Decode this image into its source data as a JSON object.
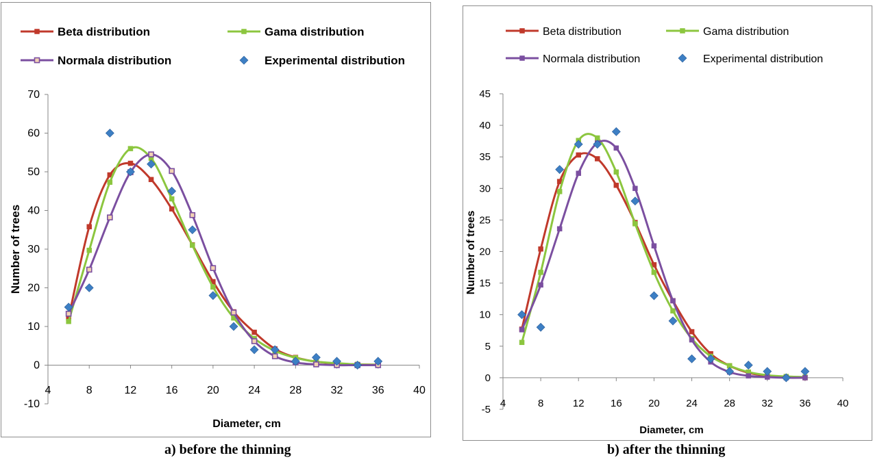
{
  "captions": {
    "a": "a) before the thinning",
    "b": "b) after the thinning"
  },
  "colors": {
    "beta": "#c0392b",
    "gama": "#8cc63f",
    "normala": "#7b4fa0",
    "experimental": "#3d7fc4"
  },
  "chart_data": [
    {
      "type": "line",
      "id": "a",
      "xlabel": "Diameter, cm",
      "ylabel": "Number of trees",
      "xlim": [
        4,
        40
      ],
      "ylim": [
        -10,
        70
      ],
      "xticks": [
        4,
        8,
        12,
        16,
        20,
        24,
        28,
        32,
        36,
        40
      ],
      "yticks": [
        -10,
        0,
        10,
        20,
        30,
        40,
        50,
        60,
        70
      ],
      "legend_layout": "top, two columns",
      "series": [
        {
          "name": "Beta distribution",
          "key": "beta",
          "style": "line-square",
          "x": [
            6,
            8,
            10,
            12,
            14,
            16,
            18,
            20,
            22,
            24,
            26,
            28,
            30,
            32,
            34,
            36
          ],
          "y": [
            12.2,
            35.8,
            49.2,
            52.2,
            48.0,
            40.4,
            31.1,
            21.6,
            13.8,
            8.5,
            4.2,
            2.0,
            0.9,
            0.4,
            0.2,
            0.1
          ]
        },
        {
          "name": "Gama distribution",
          "key": "gama",
          "style": "line-square",
          "x": [
            6,
            8,
            10,
            12,
            14,
            16,
            18,
            20,
            22,
            24,
            26,
            28,
            30,
            32,
            34,
            36
          ],
          "y": [
            11.3,
            29.7,
            47.3,
            56.0,
            53.5,
            43.0,
            31.0,
            20.2,
            12.2,
            6.9,
            3.7,
            1.9,
            0.9,
            0.5,
            0.2,
            0.1
          ]
        },
        {
          "name": "Normala distribution",
          "key": "normala",
          "style": "line-hollow-square",
          "x": [
            6,
            8,
            10,
            12,
            14,
            16,
            18,
            20,
            22,
            24,
            26,
            28,
            30,
            32,
            34,
            36
          ],
          "y": [
            13.3,
            24.7,
            38.2,
            49.9,
            54.5,
            50.2,
            38.8,
            25.1,
            13.6,
            6.2,
            2.3,
            0.7,
            0.2,
            0.0,
            0.0,
            0.0
          ]
        },
        {
          "name": "Experimental distribution",
          "key": "experimental",
          "style": "diamond",
          "x": [
            6,
            8,
            10,
            12,
            14,
            16,
            18,
            20,
            22,
            24,
            26,
            28,
            30,
            32,
            34,
            36
          ],
          "y": [
            15,
            20,
            60,
            50,
            52,
            45,
            35,
            18,
            10,
            4,
            4,
            1,
            2,
            1,
            0,
            1
          ]
        }
      ]
    },
    {
      "type": "line",
      "id": "b",
      "xlabel": "Diameter, cm",
      "ylabel": "Number of trees",
      "xlim": [
        4,
        40
      ],
      "ylim": [
        -5,
        45
      ],
      "xticks": [
        4,
        8,
        12,
        16,
        20,
        24,
        28,
        32,
        36,
        40
      ],
      "yticks": [
        -5,
        0,
        5,
        10,
        15,
        20,
        25,
        30,
        35,
        40,
        45
      ],
      "legend_layout": "top, two columns",
      "series": [
        {
          "name": "Beta distribution",
          "key": "beta",
          "style": "line-square",
          "x": [
            6,
            8,
            10,
            12,
            14,
            16,
            18,
            20,
            22,
            24,
            26,
            28,
            30,
            32,
            34,
            36
          ],
          "y": [
            7.7,
            20.4,
            31.1,
            35.3,
            34.7,
            30.5,
            24.6,
            17.9,
            12.2,
            7.3,
            3.8,
            1.9,
            0.8,
            0.3,
            0.1,
            0.0
          ]
        },
        {
          "name": "Gama distribution",
          "key": "gama",
          "style": "line-square",
          "x": [
            6,
            8,
            10,
            12,
            14,
            16,
            18,
            20,
            22,
            24,
            26,
            28,
            30,
            32,
            34,
            36
          ],
          "y": [
            5.6,
            16.7,
            29.5,
            37.6,
            38.0,
            32.6,
            24.4,
            16.7,
            10.6,
            6.2,
            3.4,
            1.9,
            0.9,
            0.4,
            0.2,
            0.1
          ]
        },
        {
          "name": "Normala distribution",
          "key": "normala",
          "style": "line-square",
          "x": [
            6,
            8,
            10,
            12,
            14,
            16,
            18,
            20,
            22,
            24,
            26,
            28,
            30,
            32,
            34,
            36
          ],
          "y": [
            7.6,
            14.7,
            23.6,
            32.4,
            37.2,
            36.4,
            30.0,
            20.9,
            12.2,
            6.0,
            2.5,
            0.9,
            0.3,
            0.1,
            0.0,
            0.0
          ]
        },
        {
          "name": "Experimental distribution",
          "key": "experimental",
          "style": "diamond",
          "x": [
            6,
            8,
            10,
            12,
            14,
            16,
            18,
            20,
            22,
            24,
            26,
            28,
            30,
            32,
            34,
            36
          ],
          "y": [
            10,
            8,
            33,
            37,
            37,
            39,
            28,
            13,
            9,
            3,
            3,
            1,
            2,
            1,
            0,
            1
          ]
        }
      ]
    }
  ]
}
